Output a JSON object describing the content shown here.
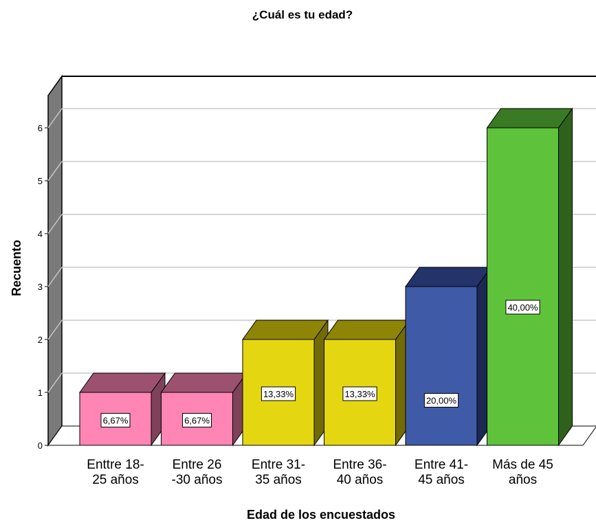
{
  "chart_data": {
    "type": "bar",
    "title": "¿Cuál es tu edad?",
    "xlabel": "Edad de los encuestados",
    "ylabel": "Recuento",
    "ylim": [
      0,
      6
    ],
    "yticks": [
      "0",
      "1",
      "2",
      "3",
      "4",
      "5",
      "6"
    ],
    "grid": true,
    "style": "3d",
    "categories": [
      [
        "Enttre 18-",
        "25 años"
      ],
      [
        "Entre 26",
        "-30 años"
      ],
      [
        "Entre 31-",
        "35 años"
      ],
      [
        "Entre 36-",
        "40 años"
      ],
      [
        "Entre 41-",
        "45 años"
      ],
      [
        "Más de 45",
        "años"
      ]
    ],
    "values": [
      1,
      1,
      2,
      2,
      3,
      6
    ],
    "data_labels": [
      "6,67%",
      "6,67%",
      "13,33%",
      "13,33%",
      "20,00%",
      "40,00%"
    ],
    "colors": [
      {
        "front": "#ff85b5",
        "top": "#9c526f",
        "side": "#7e4259"
      },
      {
        "front": "#ff85b5",
        "top": "#9c526f",
        "side": "#7e4259"
      },
      {
        "front": "#e4d711",
        "top": "#8e8406",
        "side": "#726a05"
      },
      {
        "front": "#e4d711",
        "top": "#8e8406",
        "side": "#726a05"
      },
      {
        "front": "#3f5aa7",
        "top": "#24336a",
        "side": "#1c2954"
      },
      {
        "front": "#5fc23b",
        "top": "#3a7a24",
        "side": "#2e621c"
      }
    ]
  }
}
